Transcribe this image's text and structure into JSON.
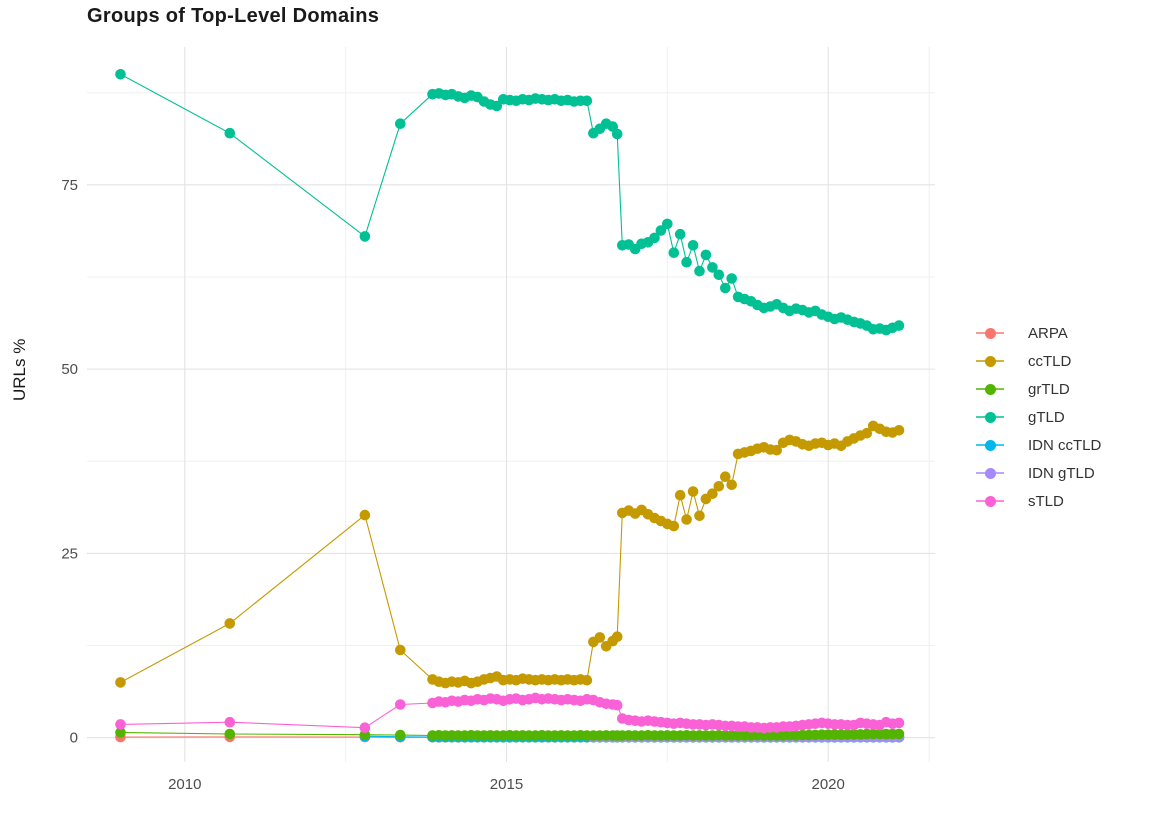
{
  "chart_data": {
    "type": "line",
    "title": "Groups of Top-Level Domains",
    "xlabel": "",
    "ylabel": "URLs %",
    "grid": true,
    "legend_position": "right",
    "xlim": [
      2008.48,
      2021.66
    ],
    "ylim": [
      -3.3,
      93.7
    ],
    "x_ticks": [
      2010,
      2015,
      2020
    ],
    "x_tick_labels": [
      "2010",
      "2015",
      "2020"
    ],
    "x_minor_ticks": [
      2012.5,
      2017.5,
      2021.57
    ],
    "y_ticks": [
      0,
      25,
      50,
      75
    ],
    "y_tick_labels": [
      "0",
      "25",
      "50",
      "75"
    ],
    "y_minor_ticks": [
      12.5,
      37.5,
      62.5,
      87.5
    ],
    "x": [
      2009.0,
      2010.7,
      2012.8,
      2013.35,
      2013.85,
      2013.95,
      2014.05,
      2014.15,
      2014.25,
      2014.35,
      2014.45,
      2014.55,
      2014.65,
      2014.75,
      2014.85,
      2014.95,
      2015.05,
      2015.15,
      2015.25,
      2015.35,
      2015.45,
      2015.55,
      2015.65,
      2015.75,
      2015.85,
      2015.95,
      2016.05,
      2016.15,
      2016.25,
      2016.35,
      2016.45,
      2016.55,
      2016.65,
      2016.72,
      2016.8,
      2016.9,
      2017.0,
      2017.1,
      2017.2,
      2017.3,
      2017.4,
      2017.5,
      2017.6,
      2017.7,
      2017.8,
      2017.9,
      2018.0,
      2018.1,
      2018.2,
      2018.3,
      2018.4,
      2018.5,
      2018.6,
      2018.7,
      2018.8,
      2018.9,
      2019.0,
      2019.1,
      2019.2,
      2019.3,
      2019.4,
      2019.5,
      2019.6,
      2019.7,
      2019.8,
      2019.9,
      2020.0,
      2020.1,
      2020.2,
      2020.3,
      2020.4,
      2020.5,
      2020.6,
      2020.7,
      2020.8,
      2020.9,
      2021.0,
      2021.1
    ],
    "draw_order": [
      "ARPA",
      "IDN ccTLD",
      "IDN gTLD",
      "grTLD",
      "ccTLD",
      "gTLD",
      "sTLD"
    ],
    "series": [
      {
        "name": "ARPA",
        "color": "#F8766D",
        "values": [
          0.08,
          0.1,
          0.08,
          0.05,
          0.05,
          0.05,
          0.05,
          0.05,
          0.05,
          0.05,
          0.05,
          0.05,
          0.05,
          0.05,
          0.05,
          0.05,
          0.05,
          0.05,
          0.05,
          0.05,
          0.05,
          0.05,
          0.05,
          0.05,
          0.05,
          0.05,
          0.05,
          0.05,
          0.05,
          0.05,
          0.05,
          0.05,
          0.05,
          0.05,
          0.05,
          0.05,
          0.05,
          0.05,
          0.05,
          0.05,
          0.05,
          0.05,
          0.05,
          0.05,
          0.05,
          0.05,
          0.05,
          0.05,
          0.05,
          0.05,
          0.05,
          0.05,
          0.05,
          0.05,
          0.05,
          0.05,
          0.05,
          0.05,
          0.05,
          0.05,
          0.05,
          0.05,
          0.05,
          0.05,
          0.05,
          0.05,
          0.05,
          0.05,
          0.05,
          0.05,
          0.05,
          0.05,
          0.05,
          0.05,
          0.05,
          0.05,
          0.05,
          0.05
        ]
      },
      {
        "name": "ccTLD",
        "color": "#C49A00",
        "values": [
          7.5,
          15.5,
          30.2,
          11.9,
          7.9,
          7.6,
          7.4,
          7.6,
          7.5,
          7.7,
          7.4,
          7.6,
          7.9,
          8.1,
          8.3,
          7.8,
          7.9,
          7.8,
          8.0,
          7.9,
          7.8,
          7.9,
          7.8,
          7.9,
          7.8,
          7.9,
          7.8,
          7.9,
          7.8,
          13.0,
          13.6,
          12.4,
          13.1,
          13.7,
          30.5,
          30.8,
          30.4,
          30.9,
          30.3,
          29.8,
          29.4,
          29.0,
          28.7,
          32.9,
          29.6,
          33.4,
          30.1,
          32.4,
          33.1,
          34.1,
          35.4,
          34.3,
          38.5,
          38.7,
          38.9,
          39.2,
          39.4,
          39.1,
          39.0,
          40.0,
          40.4,
          40.2,
          39.8,
          39.6,
          39.9,
          40.0,
          39.7,
          39.9,
          39.6,
          40.2,
          40.6,
          41.0,
          41.3,
          42.3,
          41.9,
          41.5,
          41.4,
          41.7
        ]
      },
      {
        "name": "grTLD",
        "color": "#53B400",
        "values": [
          0.7,
          0.5,
          0.4,
          0.35,
          0.3,
          0.32,
          0.3,
          0.31,
          0.3,
          0.3,
          0.32,
          0.3,
          0.3,
          0.31,
          0.3,
          0.3,
          0.32,
          0.3,
          0.31,
          0.3,
          0.3,
          0.32,
          0.3,
          0.3,
          0.31,
          0.3,
          0.3,
          0.32,
          0.3,
          0.3,
          0.3,
          0.31,
          0.3,
          0.3,
          0.3,
          0.31,
          0.3,
          0.3,
          0.32,
          0.3,
          0.3,
          0.31,
          0.3,
          0.3,
          0.32,
          0.3,
          0.31,
          0.3,
          0.3,
          0.32,
          0.3,
          0.3,
          0.31,
          0.3,
          0.3,
          0.32,
          0.3,
          0.31,
          0.3,
          0.3,
          0.32,
          0.3,
          0.35,
          0.35,
          0.38,
          0.4,
          0.4,
          0.42,
          0.4,
          0.42,
          0.45,
          0.45,
          0.48,
          0.5,
          0.5,
          0.48,
          0.5,
          0.5
        ]
      },
      {
        "name": "gTLD",
        "color": "#00C094",
        "values": [
          90.0,
          82.0,
          68.0,
          83.3,
          87.3,
          87.4,
          87.2,
          87.3,
          87.0,
          86.8,
          87.1,
          86.9,
          86.3,
          85.9,
          85.7,
          86.6,
          86.5,
          86.4,
          86.6,
          86.5,
          86.7,
          86.6,
          86.5,
          86.6,
          86.4,
          86.5,
          86.3,
          86.4,
          86.4,
          82.0,
          82.6,
          83.3,
          82.9,
          81.9,
          66.8,
          66.9,
          66.3,
          67.0,
          67.2,
          67.8,
          68.8,
          69.7,
          65.8,
          68.3,
          64.5,
          66.8,
          63.3,
          65.5,
          63.8,
          62.8,
          61.0,
          62.3,
          59.8,
          59.5,
          59.2,
          58.7,
          58.3,
          58.5,
          58.8,
          58.3,
          57.9,
          58.2,
          58.0,
          57.7,
          57.9,
          57.4,
          57.1,
          56.8,
          57.0,
          56.7,
          56.4,
          56.2,
          55.9,
          55.4,
          55.5,
          55.3,
          55.6,
          55.9
        ]
      },
      {
        "name": "IDN ccTLD",
        "color": "#00B6EB",
        "values": [
          null,
          null,
          0.2,
          0.12,
          0.08,
          0.07,
          0.06,
          0.06,
          0.05,
          0.05,
          0.05,
          0.05,
          0.05,
          0.05,
          0.05,
          0.05,
          0.05,
          0.05,
          0.05,
          0.05,
          0.05,
          0.05,
          0.05,
          0.05,
          0.05,
          0.05,
          0.05,
          0.05,
          0.05,
          0.05,
          0.05,
          0.05,
          0.05,
          0.05,
          0.05,
          0.05,
          0.05,
          0.05,
          0.05,
          0.05,
          0.05,
          0.05,
          0.05,
          0.05,
          0.05,
          0.05,
          0.05,
          0.05,
          0.05,
          0.05,
          0.05,
          0.05,
          0.05,
          0.05,
          0.05,
          0.05,
          0.05,
          0.05,
          0.05,
          0.05,
          0.05,
          0.05,
          0.05,
          0.05,
          0.05,
          0.05,
          0.05,
          0.05,
          0.05,
          0.05,
          0.05,
          0.05,
          0.05,
          0.05,
          0.05,
          0.05,
          0.05,
          0.05
        ]
      },
      {
        "name": "IDN gTLD",
        "color": "#A58AFF",
        "values": [
          null,
          null,
          null,
          null,
          null,
          null,
          null,
          null,
          null,
          null,
          null,
          null,
          null,
          null,
          null,
          null,
          null,
          null,
          null,
          null,
          null,
          null,
          null,
          null,
          null,
          null,
          null,
          null,
          null,
          0.1,
          0.1,
          0.1,
          0.1,
          0.1,
          0.1,
          0.1,
          0.1,
          0.1,
          0.1,
          0.1,
          0.1,
          0.1,
          0.1,
          0.1,
          0.1,
          0.1,
          0.1,
          0.1,
          0.1,
          0.1,
          0.1,
          0.1,
          0.1,
          0.1,
          0.1,
          0.1,
          0.1,
          0.1,
          0.1,
          0.1,
          0.1,
          0.1,
          0.1,
          0.1,
          0.1,
          0.1,
          0.1,
          0.1,
          0.1,
          0.1,
          0.1,
          0.1,
          0.1,
          0.1,
          0.1,
          0.1,
          0.1,
          0.1
        ]
      },
      {
        "name": "sTLD",
        "color": "#FB61D7",
        "values": [
          1.8,
          2.1,
          1.35,
          4.5,
          4.7,
          4.9,
          4.8,
          5.0,
          4.9,
          5.1,
          5.0,
          5.2,
          5.1,
          5.3,
          5.2,
          5.0,
          5.2,
          5.3,
          5.1,
          5.2,
          5.4,
          5.2,
          5.3,
          5.2,
          5.1,
          5.2,
          5.1,
          5.0,
          5.2,
          5.1,
          4.8,
          4.6,
          4.5,
          4.4,
          2.6,
          2.4,
          2.3,
          2.2,
          2.3,
          2.2,
          2.1,
          2.0,
          1.9,
          2.0,
          1.9,
          1.8,
          1.8,
          1.7,
          1.8,
          1.7,
          1.6,
          1.6,
          1.5,
          1.5,
          1.4,
          1.4,
          1.3,
          1.4,
          1.4,
          1.5,
          1.5,
          1.6,
          1.7,
          1.8,
          1.9,
          2.0,
          1.9,
          1.8,
          1.8,
          1.7,
          1.7,
          2.0,
          1.9,
          1.8,
          1.7,
          2.1,
          1.9,
          2.0
        ]
      }
    ],
    "legend": {
      "entries": [
        {
          "label": "ARPA",
          "color": "#F8766D"
        },
        {
          "label": "ccTLD",
          "color": "#C49A00"
        },
        {
          "label": "grTLD",
          "color": "#53B400"
        },
        {
          "label": "gTLD",
          "color": "#00C094"
        },
        {
          "label": "IDN ccTLD",
          "color": "#00B6EB"
        },
        {
          "label": "IDN gTLD",
          "color": "#A58AFF"
        },
        {
          "label": "sTLD",
          "color": "#FB61D7"
        }
      ]
    }
  }
}
